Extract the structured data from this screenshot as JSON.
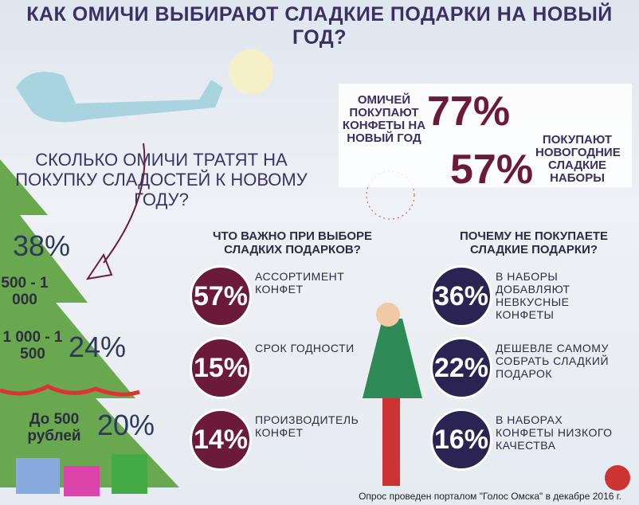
{
  "title": "КАК ОМИЧИ ВЫБИРАЮТ СЛАДКИЕ ПОДАРКИ НА НОВЫЙ ГОД?",
  "headline": [
    {
      "label": "ОМИЧЕЙ ПОКУПАЮТ КОНФЕТЫ НА НОВЫЙ ГОД",
      "value": "77%"
    },
    {
      "label": "ПОКУПАЮТ НОВОГОДНИЕ СЛАДКИЕ НАБОРЫ",
      "value": "57%"
    }
  ],
  "spending": {
    "question": "СКОЛЬКО ОМИЧИ ТРАТЯТ НА ПОКУПКУ СЛАДОСТЕЙ К НОВОМУ ГОДУ?",
    "items": [
      {
        "range": "500 - 1 000",
        "value": "38%"
      },
      {
        "range": "1 000 - 1 500",
        "value": "24%"
      },
      {
        "range": "До 500 рублей",
        "value": "20%"
      }
    ]
  },
  "importance": {
    "title": "ЧТО ВАЖНО ПРИ ВЫБОРЕ СЛАДКИХ ПОДАРКОВ?",
    "items": [
      {
        "value": "57%",
        "label": "АССОРТИМЕНТ КОНФЕТ"
      },
      {
        "value": "15%",
        "label": "СРОК ГОДНОСТИ"
      },
      {
        "value": "14%",
        "label": "ПРОИЗВОДИТЕЛЬ КОНФЕТ"
      }
    ]
  },
  "reasons": {
    "title": "ПОЧЕМУ НЕ ПОКУПАЕТЕ СЛАДКИЕ ПОДАРКИ?",
    "items": [
      {
        "value": "36%",
        "label": "В НАБОРЫ ДОБАВЛЯЮТ НЕВКУСНЫЕ КОНФЕТЫ"
      },
      {
        "value": "22%",
        "label": "ДЕШЕВЛЕ САМОМУ СОБРАТЬ СЛАДКИЙ ПОДАРОК"
      },
      {
        "value": "16%",
        "label": "В НАБОРАХ КОНФЕТЫ НИЗКОГО КАЧЕСТВА"
      }
    ]
  },
  "footer": "Опрос проведен порталом \"Голос Омска\" в декабре 2016 г."
}
